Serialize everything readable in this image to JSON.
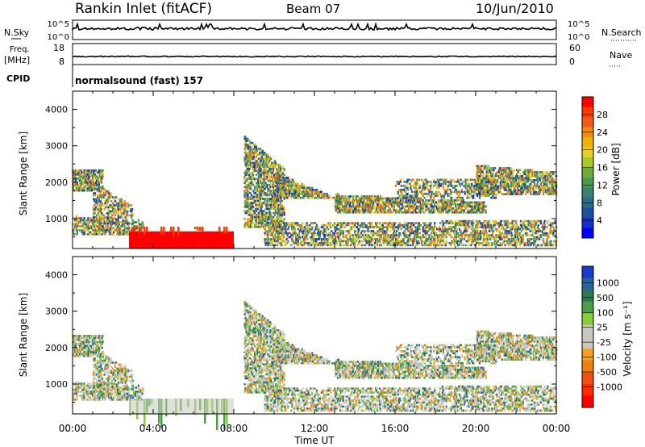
{
  "header": {
    "station": "Rankin Inlet (fitACF)",
    "beam": "Beam 07",
    "date": "10/Jun/2010"
  },
  "top_panels": {
    "nsky_label": "N.Sky",
    "nsky_ticks": [
      "10^5",
      "10^0"
    ],
    "nsearch_label": "N.Search",
    "nsearch_ticks": [
      "10^5",
      "10^0"
    ],
    "freq_label": "Freq.",
    "freq_unit": "[MHz]",
    "freq_ticks": [
      "18",
      "8"
    ],
    "nave_label": "Nave",
    "nave_ticks": [
      "60",
      "0"
    ],
    "cpid_label": "CPID",
    "cpid_text": "normalsound (fast) 157"
  },
  "chart_data": [
    {
      "type": "heatmap",
      "name": "power",
      "ylabel": "Slant Range [km]",
      "x_tick_labels": [
        "00:00",
        "04:00",
        "08:00",
        "12:00",
        "16:00",
        "20:00",
        "00:00"
      ],
      "y_ticks": [
        1000,
        2000,
        3000,
        4000
      ],
      "ylim": [
        180,
        4500
      ],
      "xlim_hours": [
        0,
        24
      ],
      "colorbar_label": "Power [dB]",
      "colorbar_ticks": [
        "28",
        "24",
        "20",
        "16",
        "12",
        "8",
        "4"
      ],
      "colorbar_colors": [
        "#ff0000",
        "#ff3a00",
        "#f05a1a",
        "#f08a10",
        "#f0b000",
        "#e8d020",
        "#a8c828",
        "#70a840",
        "#4a9a50",
        "#3a8070",
        "#2a6a8a",
        "#1e50a0",
        "#1230c8",
        "#0000ff"
      ]
    },
    {
      "type": "heatmap",
      "name": "velocity",
      "ylabel": "Slant Range [km]",
      "xlabel": "Time UT",
      "x_tick_labels": [
        "00:00",
        "04:00",
        "08:00",
        "12:00",
        "16:00",
        "20:00",
        "00:00"
      ],
      "y_ticks": [
        1000,
        2000,
        3000,
        4000
      ],
      "ylim": [
        180,
        4500
      ],
      "xlim_hours": [
        0,
        24
      ],
      "colorbar_label": "Velocity [m s⁻¹]",
      "colorbar_ticks": [
        "1000",
        "500",
        "100",
        "25",
        "-25",
        "-100",
        "-500",
        "-1000"
      ],
      "colorbar_colors": [
        "#1a3cc8",
        "#2a62a0",
        "#2c7850",
        "#48a048",
        "#86cc3c",
        "#c8c8c0",
        "#c8c8c0",
        "#f0a020",
        "#f08010",
        "#f05010",
        "#ff2a00",
        "#ff0000"
      ]
    }
  ],
  "colors": {
    "frame": "#000000",
    "background": "#ffffff",
    "strong_echo": "#ff0000",
    "ground_scatter": "#c8c8c0"
  }
}
